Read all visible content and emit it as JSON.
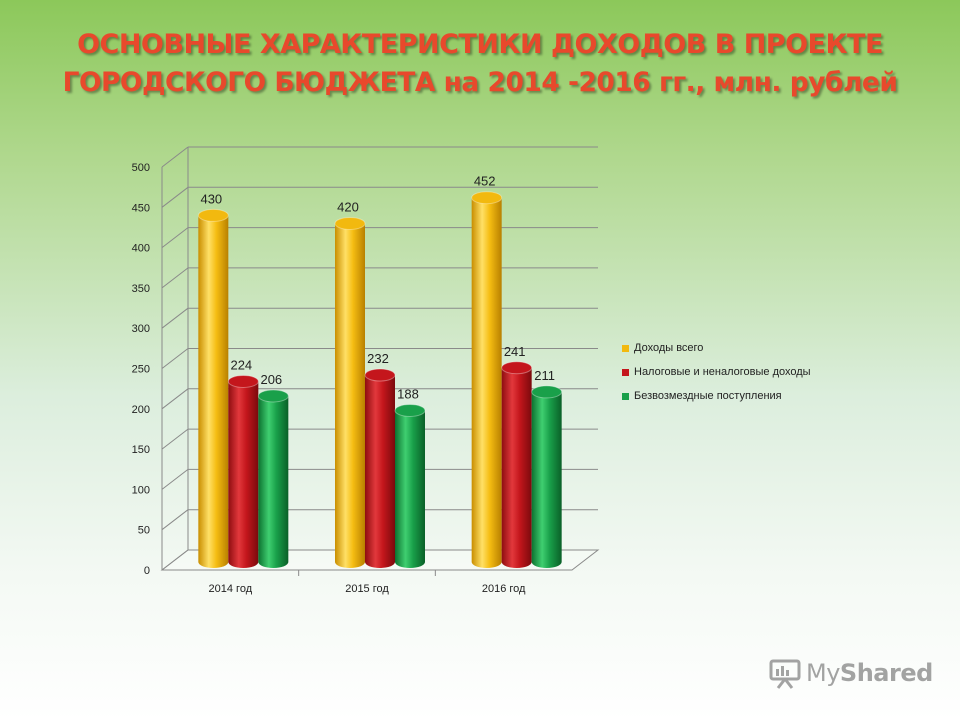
{
  "title": {
    "line1": "ОСНОВНЫЕ ХАРАКТЕРИСТИКИ ДОХОДОВ В ПРОЕКТЕ",
    "line2": "ГОРОДСКОГО БЮДЖЕТА на 2014 -2016 гг., млн. рублей"
  },
  "chart_data": {
    "type": "bar",
    "title": "ОСНОВНЫЕ ХАРАКТЕРИСТИКИ ДОХОДОВ В ПРОЕКТЕ ГОРОДСКОГО БЮДЖЕТА на 2014 -2016 гг., млн. рублей",
    "categories": [
      "2014 год",
      "2015 год",
      "2016 год"
    ],
    "series": [
      {
        "name": "Доходы всего",
        "values": [
          430,
          420,
          452
        ],
        "color": "#f2b90f"
      },
      {
        "name": "Налоговые и неналоговые доходы",
        "values": [
          224,
          232,
          241
        ],
        "color": "#c4161c"
      },
      {
        "name": "Безвозмездные поступления",
        "values": [
          206,
          188,
          211
        ],
        "color": "#19a04a"
      }
    ],
    "ylim": [
      0,
      500
    ],
    "yticks": [
      0,
      50,
      100,
      150,
      200,
      250,
      300,
      350,
      400,
      450,
      500
    ],
    "grid": true,
    "legend": "right",
    "style": "3d-cylinder"
  },
  "watermark": {
    "text_my": "My",
    "text_shared": "Shared"
  }
}
